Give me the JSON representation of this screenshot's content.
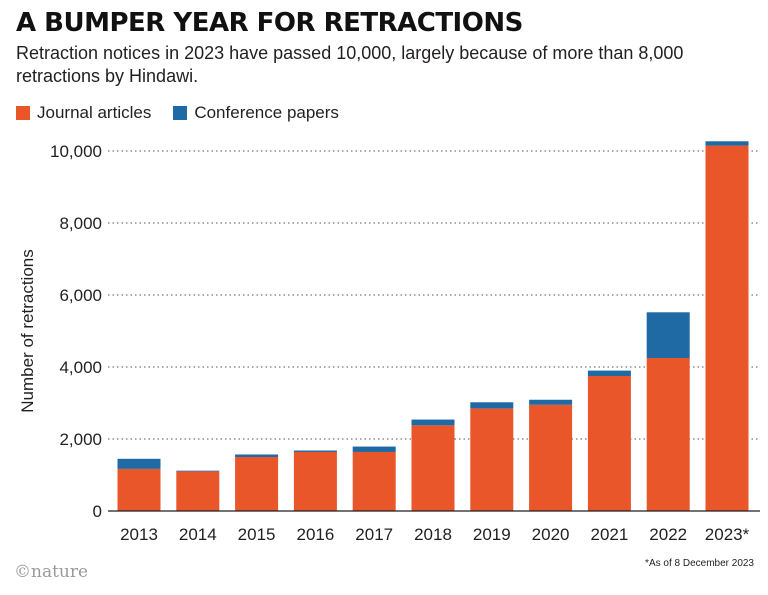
{
  "title": "A BUMPER YEAR FOR RETRACTIONS",
  "subtitle": "Retraction notices in 2023 have passed 10,000, largely because of more than 8,000 retractions by Hindawi.",
  "footnote": "*As of 8 December 2023",
  "logo": "©nature",
  "chart_data": {
    "type": "bar",
    "stacked": true,
    "categories": [
      "2013",
      "2014",
      "2015",
      "2016",
      "2017",
      "2018",
      "2019",
      "2020",
      "2021",
      "2022",
      "2023*"
    ],
    "series": [
      {
        "name": "Journal articles",
        "color": "#e8562a",
        "values": [
          1170,
          1100,
          1500,
          1640,
          1640,
          2380,
          2850,
          2950,
          3750,
          4250,
          10150
        ]
      },
      {
        "name": "Conference papers",
        "color": "#1f6aa5",
        "values": [
          280,
          20,
          70,
          40,
          150,
          160,
          170,
          140,
          150,
          1270,
          120
        ]
      }
    ],
    "ylabel": "Number of retractions",
    "xlabel": "",
    "ylim": [
      0,
      10000
    ],
    "yticks": [
      0,
      2000,
      4000,
      6000,
      8000,
      10000
    ],
    "ytick_labels": [
      "0",
      "2,000",
      "4,000",
      "6,000",
      "8,000",
      "10,000"
    ],
    "grid": "horizontal-dotted",
    "legend_position": "top-left"
  }
}
